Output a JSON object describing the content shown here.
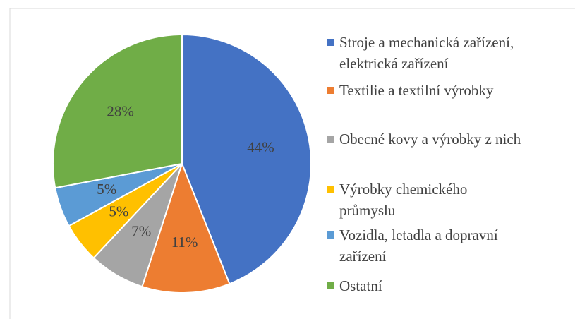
{
  "chart_data": {
    "type": "pie",
    "categories": [
      "Stroje a mechanická zařízení, elektrická zařízení",
      "Textilie a textilní výrobky",
      "Obecné kovy a výrobky z nich",
      "Výrobky chemického průmyslu",
      "Vozidla, letadla a dopravní zařízení",
      "Ostatní"
    ],
    "values": [
      44,
      11,
      7,
      5,
      5,
      28
    ],
    "value_labels": [
      "44%",
      "11%",
      "7%",
      "5%",
      "5%",
      "28%"
    ],
    "colors": [
      "#4472c4",
      "#ed7d31",
      "#a5a5a5",
      "#ffc000",
      "#5b9bd5",
      "#70ad47"
    ],
    "legend": "right"
  }
}
